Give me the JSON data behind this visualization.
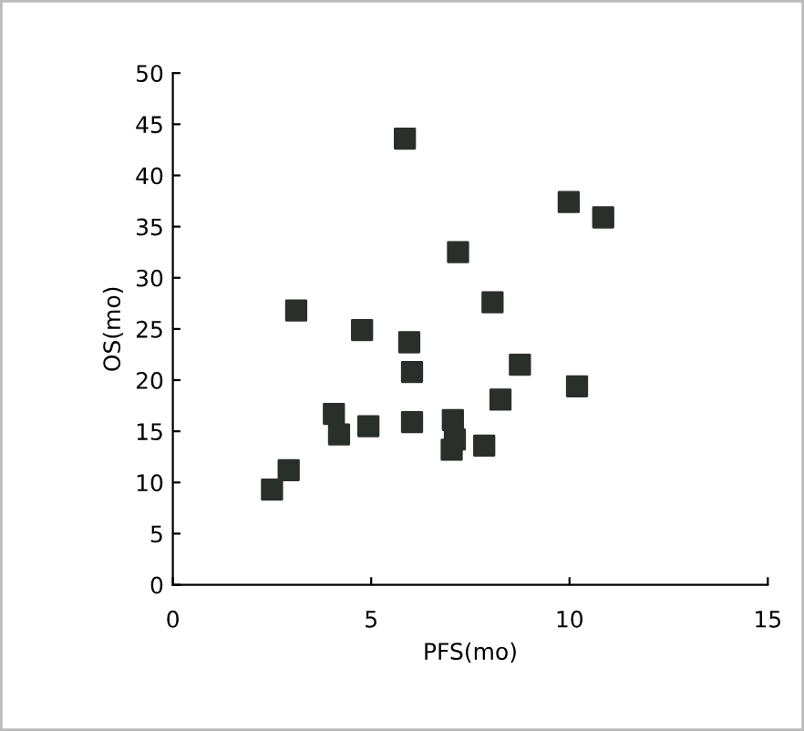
{
  "chart_data": {
    "type": "scatter",
    "xlabel": "PFS(mo)",
    "ylabel": "OS(mo)",
    "x": [
      5.85,
      9.98,
      10.85,
      7.19,
      8.06,
      3.11,
      4.77,
      5.96,
      6.03,
      8.75,
      10.19,
      8.26,
      4.06,
      4.19,
      4.93,
      6.03,
      7.06,
      7.11,
      7.03,
      7.85,
      2.92,
      2.5
    ],
    "values": [
      43.6,
      37.4,
      35.9,
      32.5,
      27.6,
      26.8,
      24.9,
      23.7,
      20.8,
      21.5,
      19.4,
      18.1,
      16.7,
      14.7,
      15.5,
      15.9,
      16.1,
      14.2,
      13.2,
      13.6,
      11.2,
      9.3
    ],
    "color": "#2b2f2b",
    "marker": "square",
    "grid": false,
    "legend": false,
    "xlim": [
      0,
      15
    ],
    "xticks": [
      0,
      5,
      10,
      15
    ],
    "ylim": [
      0,
      50
    ],
    "yticks": [
      0,
      5,
      10,
      15,
      20,
      25,
      30,
      35,
      40,
      45,
      50
    ]
  }
}
